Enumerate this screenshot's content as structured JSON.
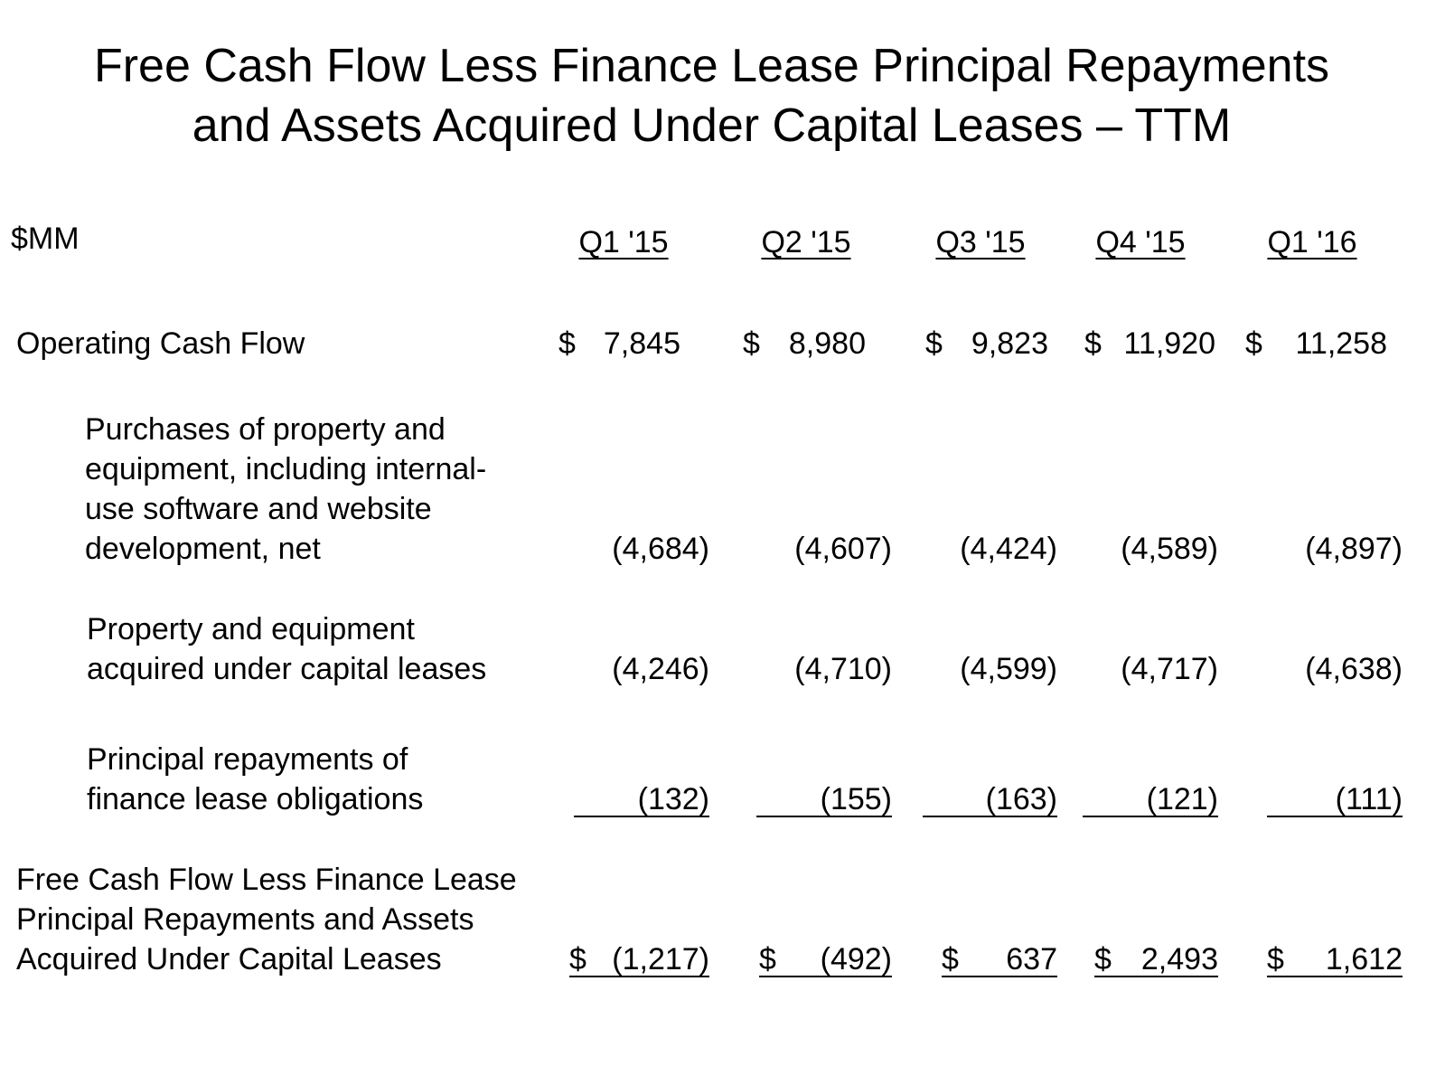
{
  "title_lines": [
    "Free Cash Flow Less Finance Lease Principal Repayments",
    "and Assets Acquired Under Capital Leases – TTM"
  ],
  "table": {
    "unit": "$MM",
    "columns": [
      "Q1 '15",
      "Q2 '15",
      "Q3 '15",
      "Q4 '15",
      "Q1 '16"
    ],
    "rows": [
      {
        "label_lines": [
          "Operating Cash Flow"
        ],
        "cells": [
          "$ 7,845",
          "$ 8,980",
          "$ 9,823",
          "$ 11,920",
          "$ 11,258"
        ]
      },
      {
        "label_lines": [
          "Purchases of property and",
          "equipment, including internal-",
          "use software and website",
          "development, net"
        ],
        "cells": [
          "(4,684)",
          "(4,607)",
          "(4,424)",
          "(4,589)",
          "(4,897)"
        ]
      },
      {
        "label_lines": [
          "Property and equipment",
          "acquired under capital leases"
        ],
        "cells": [
          "(4,246)",
          "(4,710)",
          "(4,599)",
          "(4,717)",
          "(4,638)"
        ]
      },
      {
        "label_lines": [
          "Principal repayments of",
          "finance lease obligations"
        ],
        "cells": [
          "(132)",
          "(155)",
          "(163)",
          "(121)",
          "(111)"
        ]
      },
      {
        "label_lines": [
          "Free Cash Flow Less Finance Lease",
          "Principal Repayments and Assets",
          "Acquired Under Capital Leases"
        ],
        "cells": [
          "$ (1,217)",
          "$ (492)",
          "$ 637",
          "$ 2,493",
          "$ 1,612"
        ]
      }
    ]
  }
}
